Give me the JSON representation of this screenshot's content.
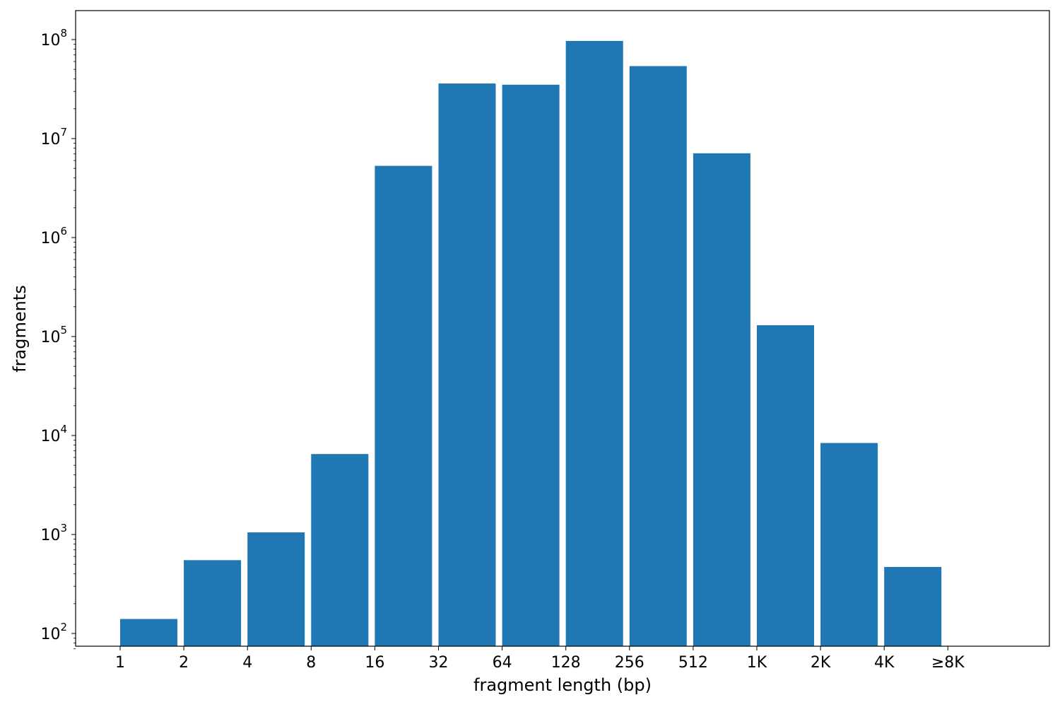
{
  "chart_data": {
    "type": "bar",
    "xlabel": "fragment length (bp)",
    "ylabel": "fragments",
    "y_scale": "log",
    "ylim": [
      70,
      140000000
    ],
    "categories": [
      "1",
      "2",
      "4",
      "8",
      "16",
      "32",
      "64",
      "128",
      "256",
      "512",
      "1K",
      "2K",
      "4K",
      "≥8K"
    ],
    "values": [
      140,
      550,
      1050,
      6500,
      5300000,
      36000000,
      35000000,
      97000000,
      54000000,
      7100000,
      130000,
      8400,
      470,
      0
    ],
    "y_ticks": [
      {
        "value": 100,
        "base": "10",
        "exp": "2"
      },
      {
        "value": 1000,
        "base": "10",
        "exp": "3"
      },
      {
        "value": 10000,
        "base": "10",
        "exp": "4"
      },
      {
        "value": 100000,
        "base": "10",
        "exp": "5"
      },
      {
        "value": 1000000,
        "base": "10",
        "exp": "6"
      },
      {
        "value": 10000000,
        "base": "10",
        "exp": "7"
      },
      {
        "value": 100000000,
        "base": "10",
        "exp": "8"
      }
    ],
    "bar_color": "#1f77b4",
    "grid": false,
    "legend": "none"
  }
}
